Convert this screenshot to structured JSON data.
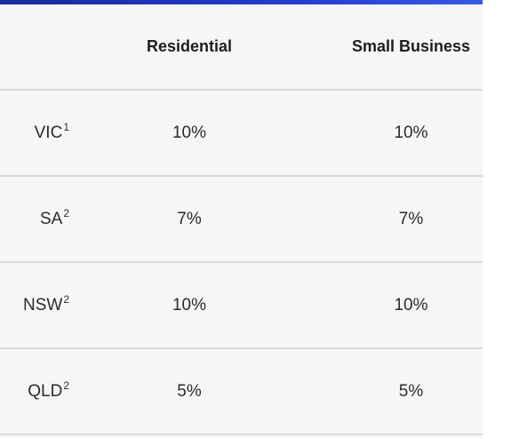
{
  "table": {
    "headers": {
      "region": "",
      "residential": "Residential",
      "small_business": "Small Business"
    },
    "rows": [
      {
        "region": "VIC",
        "footnote": "1",
        "residential": "10%",
        "small_business": "10%"
      },
      {
        "region": "SA",
        "footnote": "2",
        "residential": "7%",
        "small_business": "7%"
      },
      {
        "region": "NSW",
        "footnote": "2",
        "residential": "10%",
        "small_business": "10%"
      },
      {
        "region": "QLD",
        "footnote": "2",
        "residential": "5%",
        "small_business": "5%"
      }
    ]
  },
  "colors": {
    "top_bar": "#243bd0",
    "table_background": "#f6f6f6",
    "row_divider": "#d9d9d9"
  }
}
